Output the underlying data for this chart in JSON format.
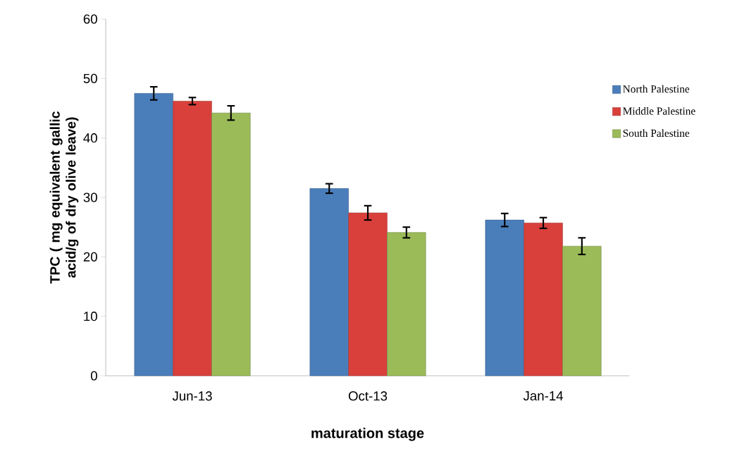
{
  "chart_data": {
    "type": "bar",
    "xlabel": "maturation stage",
    "ylabel": "TPC  ( mg equivalent gallic acid/g of dry olive leave)",
    "categories": [
      "Jun-13",
      "Oct-13",
      "Jan-14"
    ],
    "series": [
      {
        "name": "North Palestine",
        "color": "#4a7ebb",
        "values": [
          47.5,
          31.5,
          26.2
        ],
        "errors": [
          1.1,
          0.8,
          1.1
        ]
      },
      {
        "name": "Middle Palestine",
        "color": "#d9403b",
        "values": [
          46.2,
          27.4,
          25.7
        ],
        "errors": [
          0.6,
          1.2,
          0.9
        ]
      },
      {
        "name": "South Palestine",
        "color": "#9bbb59",
        "values": [
          44.2,
          24.1,
          21.8
        ],
        "errors": [
          1.2,
          0.9,
          1.4
        ]
      }
    ],
    "ylim": [
      0,
      60
    ],
    "yticks": [
      0,
      10,
      20,
      30,
      40,
      50,
      60
    ],
    "legend": "right"
  }
}
